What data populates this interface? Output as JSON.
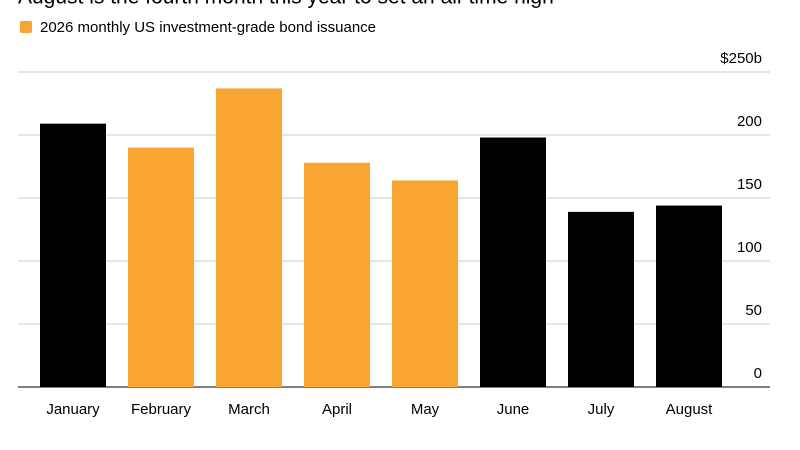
{
  "chart_data": {
    "type": "bar",
    "title": "August is the fourth month this year to set an all-time high",
    "legend": "2026 monthly US investment-grade bond issuance",
    "legend_color": "#f9a533",
    "categories": [
      "January",
      "February",
      "March",
      "April",
      "May",
      "June",
      "July",
      "August"
    ],
    "values": [
      209,
      190,
      237,
      178,
      164,
      198,
      139,
      144
    ],
    "colors": [
      "#000000",
      "#f9a533",
      "#f9a533",
      "#f9a533",
      "#f9a533",
      "#000000",
      "#000000",
      "#000000"
    ],
    "ylim": [
      0,
      250
    ],
    "yticks": [
      0,
      50,
      100,
      150,
      200,
      {
        "value": 250,
        "label": "$250b"
      }
    ],
    "y_axis_side": "right",
    "grid": true
  }
}
